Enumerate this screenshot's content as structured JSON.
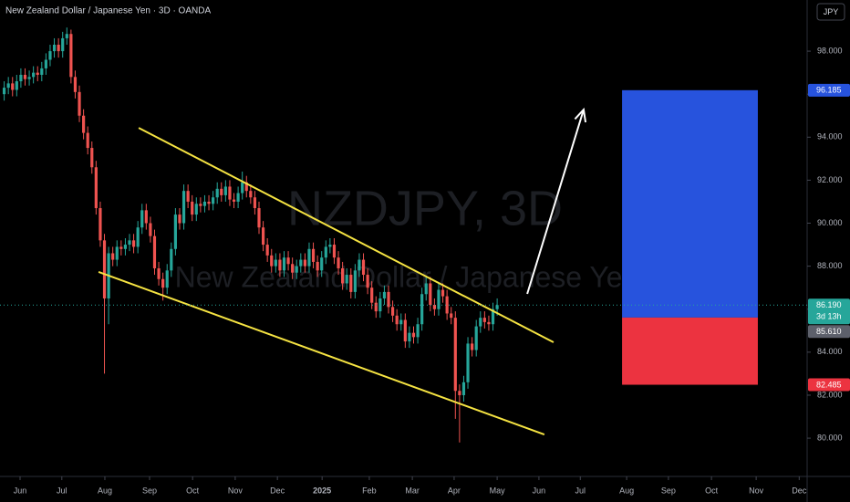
{
  "chart_data": {
    "type": "candlestick",
    "title": "New Zealand Dollar / Japanese Yen · 3D · OANDA",
    "watermark": {
      "symbol": "NZDJPY, 3D",
      "description": "New Zealand Dollar / Japanese Yen"
    },
    "currency_button": "JPY",
    "up_color": "#26a69a",
    "down_color": "#ef5350",
    "xlim": [
      0,
      193.2
    ],
    "xticks": [
      {
        "value": 4.8,
        "label": "Jun"
      },
      {
        "value": 14.8,
        "label": "Jul"
      },
      {
        "value": 25.1,
        "label": "Aug"
      },
      {
        "value": 35.8,
        "label": "Sep"
      },
      {
        "value": 46.1,
        "label": "Oct"
      },
      {
        "value": 56.3,
        "label": "Nov"
      },
      {
        "value": 66.4,
        "label": "Dec"
      },
      {
        "value": 77.1,
        "label": "2025"
      },
      {
        "value": 88.4,
        "label": "Feb"
      },
      {
        "value": 98.7,
        "label": "Mar"
      },
      {
        "value": 108.7,
        "label": "Apr"
      },
      {
        "value": 119,
        "label": "May"
      },
      {
        "value": 129,
        "label": "Jun"
      },
      {
        "value": 138.9,
        "label": "Jul"
      },
      {
        "value": 150,
        "label": "Aug"
      },
      {
        "value": 160,
        "label": "Sep"
      },
      {
        "value": 170.3,
        "label": "Oct"
      },
      {
        "value": 181,
        "label": "Nov"
      },
      {
        "value": 191.3,
        "label": "Dec"
      }
    ],
    "ylim": [
      78.22,
      100.38
    ],
    "yticks": [
      {
        "value": 80,
        "label": "80.000"
      },
      {
        "value": 82,
        "label": "82.000"
      },
      {
        "value": 84,
        "label": "84.000"
      },
      {
        "value": 86,
        "label": "86.000"
      },
      {
        "value": 88,
        "label": "88.000"
      },
      {
        "value": 90,
        "label": "90.000"
      },
      {
        "value": 92,
        "label": "92.000"
      },
      {
        "value": 94,
        "label": "94.000"
      },
      {
        "value": 96,
        "label": "96.000"
      },
      {
        "value": 98,
        "label": "98.000"
      }
    ],
    "x": [
      1,
      2,
      3,
      4,
      5,
      6,
      7,
      8,
      9,
      10,
      11,
      12,
      13,
      14,
      15,
      16,
      17,
      18,
      19,
      20,
      21,
      22,
      23,
      24,
      25,
      26,
      27,
      28,
      29,
      30,
      31,
      32,
      33,
      34,
      35,
      36,
      37,
      38,
      39,
      40,
      41,
      42,
      43,
      44,
      45,
      46,
      47,
      48,
      49,
      50,
      51,
      52,
      53,
      54,
      55,
      56,
      57,
      58,
      59,
      60,
      61,
      62,
      63,
      64,
      65,
      66,
      67,
      68,
      69,
      70,
      71,
      72,
      73,
      74,
      75,
      76,
      77,
      78,
      79,
      80,
      81,
      82,
      83,
      84,
      85,
      86,
      87,
      88,
      89,
      90,
      91,
      92,
      93,
      94,
      95,
      96,
      97,
      98,
      99,
      100,
      101,
      102,
      103,
      104,
      105,
      106,
      107,
      108,
      109,
      110,
      111,
      112,
      113,
      114,
      115,
      116,
      117,
      118,
      119
    ],
    "open": [
      96.0,
      96.3,
      96.5,
      96.2,
      96.6,
      96.9,
      96.7,
      96.8,
      97.0,
      96.9,
      97.2,
      97.6,
      98.0,
      98.3,
      98.0,
      98.6,
      98.8,
      96.8,
      96.1,
      95.0,
      94.2,
      93.5,
      92.6,
      90.7,
      89.2,
      86.5,
      88.6,
      88.3,
      88.9,
      88.8,
      89.0,
      89.2,
      88.9,
      89.8,
      90.6,
      90.0,
      89.4,
      87.9,
      87.4,
      87.0,
      87.8,
      88.8,
      90.4,
      90.0,
      91.5,
      91.0,
      90.4,
      90.9,
      90.8,
      91.0,
      90.9,
      91.2,
      91.6,
      91.3,
      91.7,
      91.1,
      91.0,
      91.4,
      91.9,
      91.5,
      91.2,
      90.7,
      89.8,
      89.0,
      88.5,
      88.0,
      88.3,
      87.8,
      88.4,
      88.1,
      87.7,
      88.0,
      88.3,
      88.0,
      88.8,
      88.2,
      87.8,
      88.4,
      88.9,
      89.0,
      88.4,
      87.9,
      87.2,
      87.6,
      86.8,
      87.8,
      88.3,
      87.6,
      87.0,
      86.3,
      85.9,
      86.5,
      86.8,
      86.1,
      85.7,
      85.3,
      85.5,
      84.5,
      84.9,
      84.7,
      85.3,
      86.7,
      87.2,
      86.2,
      86.0,
      86.9,
      86.6,
      85.8,
      85.6,
      82.2,
      82.0,
      82.6,
      84.4,
      84.1,
      85.2,
      85.6,
      85.4,
      85.3,
      86.0
    ],
    "high": [
      96.6,
      96.8,
      96.8,
      96.9,
      97.2,
      97.2,
      97.1,
      97.3,
      97.3,
      97.5,
      97.9,
      98.3,
      98.6,
      98.6,
      98.9,
      99.1,
      99.0,
      97.1,
      96.4,
      95.3,
      94.5,
      93.8,
      92.9,
      91.0,
      89.5,
      88.9,
      88.9,
      89.2,
      89.2,
      89.3,
      89.5,
      89.5,
      90.1,
      90.9,
      90.9,
      90.3,
      89.7,
      88.2,
      87.7,
      88.1,
      89.1,
      90.7,
      90.7,
      91.8,
      91.8,
      91.3,
      91.2,
      91.2,
      91.3,
      91.3,
      91.5,
      91.9,
      91.9,
      92.0,
      92.0,
      91.4,
      91.7,
      92.4,
      92.2,
      91.8,
      91.5,
      91.0,
      90.1,
      89.3,
      88.8,
      88.6,
      88.6,
      88.7,
      88.7,
      88.4,
      88.3,
      88.6,
      88.6,
      89.1,
      89.1,
      88.5,
      88.7,
      89.2,
      89.3,
      89.3,
      88.7,
      88.2,
      87.9,
      87.9,
      88.1,
      88.6,
      88.6,
      87.9,
      87.3,
      86.6,
      86.8,
      87.1,
      87.1,
      86.4,
      86.0,
      85.8,
      85.8,
      85.2,
      85.2,
      85.6,
      87.0,
      87.5,
      87.5,
      86.5,
      87.2,
      87.2,
      86.9,
      86.1,
      85.9,
      82.5,
      82.9,
      84.7,
      84.7,
      85.5,
      85.9,
      85.9,
      85.7,
      86.3,
      86.5
    ],
    "low": [
      95.7,
      96.0,
      95.9,
      95.9,
      96.3,
      96.4,
      96.4,
      96.5,
      96.6,
      96.6,
      96.9,
      97.3,
      97.7,
      97.7,
      97.7,
      98.3,
      96.5,
      95.8,
      94.7,
      93.9,
      93.2,
      92.3,
      90.4,
      88.9,
      83.0,
      85.3,
      88.0,
      88.0,
      88.5,
      88.5,
      88.7,
      88.6,
      88.6,
      89.5,
      89.7,
      89.1,
      87.6,
      87.1,
      86.4,
      86.7,
      87.5,
      88.5,
      89.7,
      89.7,
      90.7,
      90.1,
      90.1,
      90.5,
      90.5,
      90.6,
      90.6,
      90.9,
      91.0,
      91.0,
      90.8,
      90.7,
      90.7,
      91.1,
      91.2,
      90.9,
      90.4,
      89.5,
      88.7,
      88.2,
      87.7,
      87.7,
      87.5,
      87.5,
      87.8,
      87.4,
      87.4,
      87.7,
      87.7,
      87.7,
      87.9,
      87.5,
      87.5,
      88.1,
      88.6,
      88.1,
      87.6,
      86.9,
      86.9,
      86.5,
      86.5,
      87.5,
      87.3,
      86.7,
      86.0,
      85.6,
      85.6,
      86.2,
      85.8,
      85.4,
      85.0,
      85.0,
      84.2,
      84.2,
      84.4,
      84.4,
      85.0,
      86.4,
      85.9,
      85.7,
      85.7,
      86.3,
      85.5,
      85.3,
      80.9,
      79.8,
      81.7,
      82.3,
      83.8,
      83.8,
      84.9,
      85.1,
      85.0,
      85.0,
      85.7
    ],
    "close": [
      96.3,
      96.5,
      96.2,
      96.6,
      96.9,
      96.7,
      96.8,
      97.0,
      96.9,
      97.2,
      97.6,
      98.0,
      98.3,
      98.0,
      98.6,
      98.8,
      96.8,
      96.1,
      95.0,
      94.2,
      93.5,
      92.6,
      90.7,
      89.2,
      86.5,
      88.6,
      88.3,
      88.9,
      88.8,
      89.0,
      89.2,
      88.9,
      89.8,
      90.6,
      90.0,
      89.4,
      87.9,
      87.4,
      87.0,
      87.8,
      88.8,
      90.4,
      90.0,
      91.5,
      91.0,
      90.4,
      90.9,
      90.8,
      91.0,
      90.9,
      91.2,
      91.6,
      91.3,
      91.7,
      91.1,
      91.0,
      91.4,
      91.9,
      91.5,
      91.2,
      90.7,
      89.8,
      89.0,
      88.5,
      88.0,
      88.3,
      87.8,
      88.4,
      88.1,
      87.7,
      88.0,
      88.3,
      88.0,
      88.8,
      88.2,
      87.8,
      88.4,
      88.9,
      89.0,
      88.4,
      87.9,
      87.2,
      87.6,
      86.8,
      87.8,
      88.3,
      87.6,
      87.0,
      86.3,
      85.9,
      86.5,
      86.8,
      86.1,
      85.7,
      85.3,
      85.5,
      84.5,
      84.9,
      84.7,
      85.3,
      86.7,
      87.2,
      86.2,
      86.0,
      86.9,
      86.6,
      85.8,
      85.6,
      82.2,
      82.0,
      82.6,
      84.4,
      84.1,
      85.2,
      85.6,
      85.4,
      85.3,
      86.0,
      86.19
    ],
    "trendlines": [
      {
        "color": "#f5e342",
        "x": [
          33.2,
          132.5
        ],
        "y": [
          94.43,
          84.46
        ]
      },
      {
        "color": "#f5e342",
        "x": [
          23.6,
          130.3
        ],
        "y": [
          87.73,
          80.17
        ]
      }
    ],
    "arrow": {
      "color": "#ffffff",
      "x": [
        126.2,
        139.7
      ],
      "y": [
        86.71,
        95.28
      ]
    },
    "position": {
      "x": [
        148.9,
        181.4
      ],
      "profit_color": "#2753dd",
      "loss_color": "#ec3340",
      "target": {
        "value": 96.185,
        "label": "96.185"
      },
      "entry": {
        "value": 85.61,
        "label": "85.610"
      },
      "stop": {
        "value": 82.485,
        "label": "82.485"
      }
    },
    "last_price": {
      "value": 86.19,
      "label": "86.190",
      "countdown": "3d 13h"
    }
  }
}
